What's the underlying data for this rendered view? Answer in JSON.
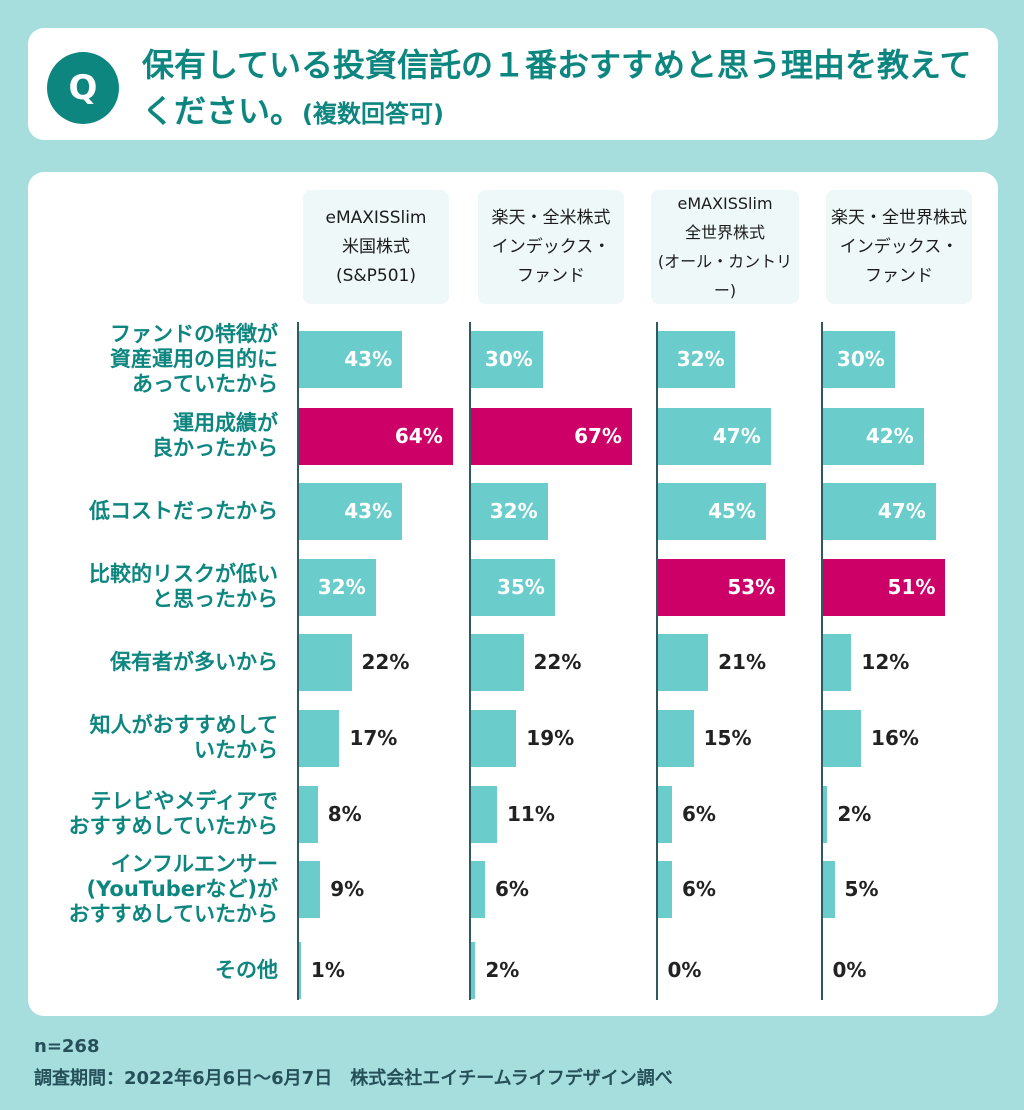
{
  "header": {
    "badge": "Q",
    "question": "保有している投資信託の１番おすすめと思う理由を教えてください。",
    "note": "(複数回答可)"
  },
  "chart_data": {
    "type": "bar",
    "orientation": "horizontal",
    "categories": [
      "ファンドの特徴が\n資産運用の目的に\nあっていたから",
      "運用成績が\n良かったから",
      "低コストだったから",
      "比較的リスクが低い\nと思ったから",
      "保有者が多いから",
      "知人がおすすめして\nいたから",
      "テレビやメディアで\nおすすめしていたから",
      "インフルエンサー\n(YouTuberなど)が\nおすすめしていたから",
      "その他"
    ],
    "series": [
      {
        "name": "eMAXISSlim\n米国株式\n(S&P501)",
        "values": [
          43,
          64,
          43,
          32,
          22,
          17,
          8,
          9,
          1
        ],
        "highlight_index": 1
      },
      {
        "name": "楽天・全米株式\nインデックス・\nファンド",
        "values": [
          30,
          67,
          32,
          35,
          22,
          19,
          11,
          6,
          2
        ],
        "highlight_index": 1
      },
      {
        "name": "eMAXISSlim\n全世界株式\n(オール・カントリー)",
        "values": [
          32,
          47,
          45,
          53,
          21,
          15,
          6,
          6,
          0
        ],
        "highlight_index": 3
      },
      {
        "name": "楽天・全世界株式\nインデックス・\nファンド",
        "values": [
          30,
          42,
          47,
          51,
          12,
          16,
          2,
          5,
          0
        ],
        "highlight_index": 3
      }
    ],
    "unit": "%",
    "colors": {
      "bar": "#6acdcc",
      "highlight": "#cc0066",
      "text": "#0e8680"
    }
  },
  "footer": {
    "n": "n=268",
    "survey": "調査期間：2022年6月6日～6月7日　株式会社エイチームライフデザイン調べ"
  }
}
